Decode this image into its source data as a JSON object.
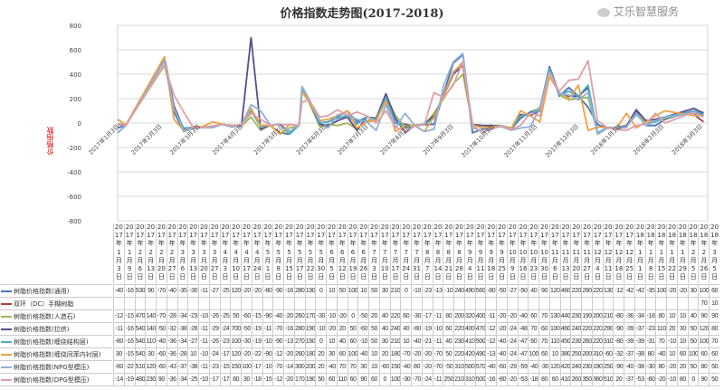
{
  "chart_data": {
    "type": "line",
    "title": "价格指数走势图(2017-2018)",
    "ylabel": "价格指数",
    "xlabel": "",
    "ylim": [
      -800,
      800
    ],
    "yticks": [
      "800",
      "600",
      "400",
      "200",
      "0",
      "-200",
      "-400",
      "-600",
      "-800"
    ],
    "ytick_values": [
      800,
      600,
      400,
      200,
      0,
      -200,
      -400,
      -600,
      -800
    ],
    "grid": true,
    "x_axis_labels": [
      "2017年1月3日",
      "2017年2月3日",
      "2017年3月3日",
      "2017年4月3日",
      "2017年5月3日",
      "2017年6月3日",
      "2017年7月3日",
      "2017年8月3日",
      "2017年9月3日",
      "2017年10月3日",
      "2017年11月3日",
      "2017年12月3日",
      "2018年1月3日",
      "2018年2月3日",
      "2018年3月3日"
    ],
    "x_axis_dates": [
      "2017-01-03",
      "2017-02-03",
      "2017-03-03",
      "2017-04-03",
      "2017-05-03",
      "2017-06-03",
      "2017-07-03",
      "2017-08-03",
      "2017-09-03",
      "2017-10-03",
      "2017-11-03",
      "2017-12-03",
      "2018-01-03",
      "2018-02-03",
      "2018-03-03"
    ],
    "categories": [
      "2017年1月3日",
      "2017年1月9日",
      "2017年2月6日",
      "2017年2月13日",
      "2017年2月20日",
      "2017年2月27日",
      "2017年3月6日",
      "2017年3月13日",
      "2017年3月20日",
      "2017年3月27日",
      "2017年4月3日",
      "2017年4月10日",
      "2017年4月17日",
      "2017年4月24日",
      "2017年5月1日",
      "2017年5月8日",
      "2017年5月15日",
      "2017年5月17日",
      "2017年5月22日",
      "2017年5月30日",
      "2017年6月5日",
      "2017年6月12日",
      "2017年6月19日",
      "2017年6月26日",
      "2017年7月3日",
      "2017年7月10日",
      "2017年7月17日",
      "2017年7月24日",
      "2017年7月31日",
      "2017年8月7日",
      "2017年8月14日",
      "2017年8月21日",
      "2017年8月28日",
      "2017年9月4日",
      "2017年9月11日",
      "2017年9月18日",
      "2017年9月25日",
      "2017年10月9日",
      "2017年10月16日",
      "2017年10月23日",
      "2017年10月30日",
      "2017年11月6日",
      "2017年11月13日",
      "2017年11月20日",
      "2017年11月27日",
      "2017年12月4日",
      "2017年12月11日",
      "2017年12月18日",
      "2017年12月25日",
      "2018年1月1日",
      "2018年1月8日",
      "2018年1月15日",
      "2018年1月22日",
      "2018年1月29日",
      "2018年2月5日",
      "2018年2月26日",
      "2018年3月5日"
    ],
    "dates": [
      "2017-01-03",
      "2017-01-09",
      "2017-02-06",
      "2017-02-13",
      "2017-02-20",
      "2017-02-27",
      "2017-03-06",
      "2017-03-13",
      "2017-03-20",
      "2017-03-27",
      "2017-04-03",
      "2017-04-10",
      "2017-04-17",
      "2017-04-24",
      "2017-05-01",
      "2017-05-08",
      "2017-05-15",
      "2017-05-17",
      "2017-05-22",
      "2017-05-30",
      "2017-06-05",
      "2017-06-12",
      "2017-06-19",
      "2017-06-26",
      "2017-07-03",
      "2017-07-10",
      "2017-07-17",
      "2017-07-24",
      "2017-07-31",
      "2017-08-07",
      "2017-08-14",
      "2017-08-21",
      "2017-08-28",
      "2017-09-04",
      "2017-09-11",
      "2017-09-18",
      "2017-09-25",
      "2017-10-09",
      "2017-10-16",
      "2017-10-23",
      "2017-10-30",
      "2017-11-06",
      "2017-11-13",
      "2017-11-20",
      "2017-11-27",
      "2017-12-04",
      "2017-12-11",
      "2017-12-18",
      "2017-12-25",
      "2018-01-01",
      "2018-01-08",
      "2018-01-15",
      "2018-01-22",
      "2018-01-29",
      "2018-02-05",
      "2018-02-26",
      "2018-03-05"
    ],
    "series": [
      {
        "name": "树脂价格指数(通用)",
        "color": "#4a72b8",
        "values": [
          -40,
          -16,
          530,
          90,
          -70,
          -40,
          -35,
          -30,
          -11,
          -27,
          -25,
          120,
          -20,
          -20,
          -80,
          -90,
          -16,
          280,
          190,
          0,
          10,
          50,
          100,
          10,
          50,
          30,
          210,
          0,
          -10,
          -23,
          -13,
          -10,
          240,
          490,
          560,
          -80,
          -50,
          -27,
          -50,
          40,
          90,
          120,
          460,
          220,
          290,
          220,
          130,
          -12,
          -42,
          -42,
          -35,
          100,
          -20,
          -20,
          30,
          100,
          60
        ]
      },
      {
        "name": "双环（DC）手糊树脂",
        "color": "#a5403d",
        "values": [
          null,
          null,
          null,
          null,
          null,
          null,
          null,
          null,
          null,
          null,
          null,
          null,
          null,
          null,
          null,
          null,
          null,
          null,
          null,
          null,
          null,
          null,
          null,
          null,
          null,
          null,
          null,
          null,
          null,
          null,
          null,
          null,
          null,
          null,
          null,
          null,
          null,
          null,
          null,
          null,
          null,
          null,
          null,
          null,
          null,
          null,
          null,
          null,
          null,
          null,
          null,
          null,
          null,
          null,
          null,
          70,
          10
        ]
      },
      {
        "name": "树脂价格指数(人造石)",
        "color": "#9bbb59",
        "values": [
          -12,
          -15,
          470,
          140,
          -70,
          -28,
          -34,
          -23,
          -10,
          -26,
          -25,
          50,
          -60,
          -15,
          -90,
          -40,
          -20,
          260,
          170,
          -30,
          -10,
          -20,
          0,
          -50,
          20,
          40,
          220,
          60,
          -30,
          -17,
          -11,
          80,
          200,
          320,
          400,
          -11,
          -20,
          -20,
          -40,
          60,
          70,
          130,
          440,
          230,
          190,
          200,
          210,
          -80,
          -36,
          -34,
          -18,
          80,
          10,
          10,
          40,
          90,
          90
        ]
      },
      {
        "name": "树脂价格指数(拉挤)",
        "color": "#5e4b8c",
        "values": [
          -11,
          -16,
          540,
          140,
          -50,
          -32,
          -38,
          -28,
          -11,
          -29,
          -24,
          700,
          -50,
          -19,
          -11,
          -70,
          -16,
          280,
          190,
          -10,
          -20,
          20,
          50,
          -60,
          50,
          40,
          240,
          40,
          -80,
          -19,
          -10,
          60,
          220,
          400,
          470,
          -12,
          -20,
          -24,
          -48,
          70,
          60,
          100,
          460,
          240,
          220,
          220,
          290,
          -90,
          -39,
          -37,
          -23,
          110,
          20,
          30,
          50,
          120,
          80
        ]
      },
      {
        "name": "树脂价格指数(缠绕结构层)",
        "color": "#4bacc6",
        "values": [
          -80,
          -16,
          540,
          110,
          -40,
          -36,
          -34,
          -27,
          -11,
          -26,
          -23,
          100,
          -30,
          -19,
          -10,
          -90,
          -13,
          270,
          190,
          0,
          10,
          40,
          60,
          -10,
          50,
          30,
          210,
          10,
          -40,
          -21,
          -11,
          40,
          230,
          410,
          500,
          -12,
          -40,
          -24,
          -47,
          60,
          70,
          110,
          450,
          230,
          260,
          220,
          310,
          -80,
          -39,
          -39,
          -31,
          70,
          -10,
          10,
          50,
          100,
          70
        ]
      },
      {
        "name": "树脂价格指数(缠绕间苯内衬层)",
        "color": "#f0a040",
        "values": [
          30,
          -15,
          540,
          30,
          -60,
          -36,
          -28,
          10,
          -10,
          -24,
          -17,
          120,
          -20,
          -22,
          -90,
          -12,
          -20,
          260,
          180,
          20,
          30,
          60,
          100,
          -40,
          10,
          20,
          180,
          -70,
          -20,
          -20,
          -70,
          50,
          220,
          420,
          490,
          -13,
          -40,
          -24,
          -47,
          100,
          60,
          10,
          380,
          250,
          200,
          310,
          -60,
          -32,
          -37,
          -38,
          80,
          -40,
          10,
          60,
          100,
          60,
          60
        ]
      },
      {
        "name": "树脂价格指数(NPG型模压)",
        "color": "#8fb0d8",
        "values": [
          -80,
          -22,
          510,
          120,
          -60,
          -43,
          -37,
          -38,
          -11,
          -23,
          -15,
          150,
          100,
          -17,
          -10,
          -70,
          -14,
          300,
          200,
          20,
          -40,
          70,
          70,
          30,
          10,
          -60,
          150,
          -40,
          80,
          -20,
          -70,
          -50,
          310,
          500,
          570,
          -40,
          -60,
          -29,
          -59,
          -40,
          -30,
          120,
          420,
          240,
          230,
          190,
          250,
          -90,
          -40,
          -38,
          -30,
          80,
          -20,
          20,
          50,
          80,
          50
        ]
      },
      {
        "name": "树脂价格指数(DPG型模压)",
        "color": "#e0a0a8",
        "values": [
          -14,
          -19,
          480,
          230,
          90,
          -36,
          -34,
          -25,
          -10,
          -17,
          -17,
          80,
          30,
          -18,
          -15,
          -12,
          -20,
          170,
          190,
          50,
          60,
          110,
          60,
          90,
          60,
          0,
          100,
          -30,
          -70,
          -24,
          -11,
          250,
          210,
          310,
          500,
          -16,
          -80,
          -20,
          -53,
          -18,
          80,
          60,
          410,
          260,
          350,
          360,
          510,
          20,
          -37,
          -53,
          -60,
          -20,
          -10,
          80,
          0,
          90,
          50
        ]
      }
    ]
  },
  "watermark": "艾乐智慧服务"
}
